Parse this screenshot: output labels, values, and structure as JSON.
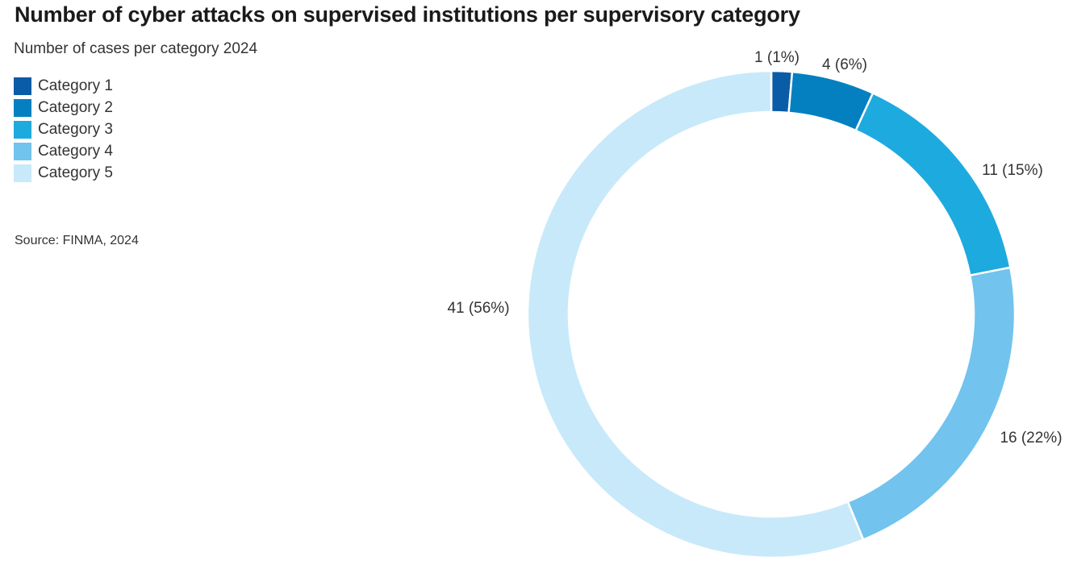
{
  "chart_data": {
    "type": "pie",
    "title": "Number of cyber attacks on supervised institutions per supervisory category",
    "subtitle": "Number of cases per category 2024",
    "source": "Source: FINMA, 2024",
    "legend_position": "top-left",
    "categories": [
      "Category 1",
      "Category 2",
      "Category 3",
      "Category 4",
      "Category 5"
    ],
    "values": [
      1,
      4,
      11,
      16,
      41
    ],
    "percentages": [
      1,
      6,
      15,
      22,
      56
    ],
    "data_labels": [
      "1 (1%)",
      "4 (6%)",
      "11 (15%)",
      "16 (22%)",
      "41 (56%)"
    ],
    "colors": [
      "#0b5ca6",
      "#0480c1",
      "#1daadf",
      "#72c3ee",
      "#c8e9fa"
    ]
  }
}
